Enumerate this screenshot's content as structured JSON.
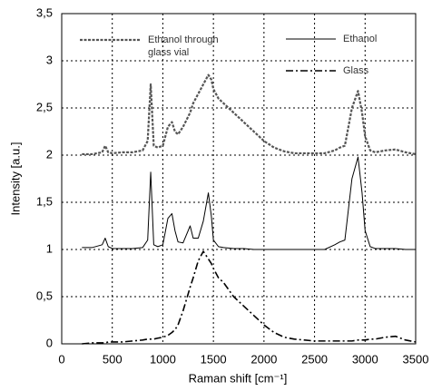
{
  "chart_data": {
    "type": "line",
    "x_label": "Raman shift [cm⁻¹]",
    "y_label": "Intensity [a.u.]",
    "xlim": [
      0,
      3500
    ],
    "xticks": [
      0,
      500,
      1000,
      1500,
      2000,
      2500,
      3000,
      3500
    ],
    "ylim": [
      0,
      3.5
    ],
    "yticks": [
      0,
      {
        "value": 0.5,
        "label": "0,5"
      },
      1,
      {
        "value": 1.5,
        "label": "1,5"
      },
      2,
      {
        "value": 2.5,
        "label": "2,5"
      },
      3,
      {
        "value": 3.5,
        "label": "3,5"
      }
    ],
    "grid": true,
    "x": [
      200,
      300,
      400,
      430,
      460,
      500,
      600,
      700,
      800,
      850,
      880,
      910,
      950,
      1000,
      1050,
      1090,
      1120,
      1150,
      1200,
      1270,
      1300,
      1350,
      1400,
      1450,
      1480,
      1500,
      1550,
      1600,
      1700,
      1800,
      1900,
      2000,
      2100,
      2200,
      2300,
      2400,
      2500,
      2600,
      2700,
      2750,
      2800,
      2870,
      2930,
      2970,
      3000,
      3050,
      3100,
      3200,
      3300,
      3400,
      3500
    ],
    "series": [
      {
        "name": "Ethanol through glass vial",
        "color": "#555555",
        "line_style": "dotted",
        "values": [
          2.01,
          2.01,
          2.03,
          2.1,
          2.03,
          2.02,
          2.03,
          2.03,
          2.05,
          2.15,
          2.75,
          2.1,
          2.08,
          2.1,
          2.3,
          2.35,
          2.25,
          2.22,
          2.3,
          2.45,
          2.55,
          2.65,
          2.75,
          2.85,
          2.8,
          2.7,
          2.6,
          2.55,
          2.45,
          2.35,
          2.25,
          2.15,
          2.08,
          2.04,
          2.02,
          2.02,
          2.02,
          2.02,
          2.05,
          2.08,
          2.1,
          2.5,
          2.68,
          2.45,
          2.2,
          2.05,
          2.03,
          2.05,
          2.06,
          2.03,
          2.01
        ]
      },
      {
        "name": "Ethanol",
        "color": "#000000",
        "line_style": "solid",
        "values": [
          1.02,
          1.02,
          1.05,
          1.12,
          1.03,
          1.01,
          1.01,
          1.01,
          1.02,
          1.1,
          1.82,
          1.05,
          1.03,
          1.05,
          1.33,
          1.38,
          1.2,
          1.08,
          1.07,
          1.25,
          1.12,
          1.12,
          1.3,
          1.6,
          1.35,
          1.1,
          1.03,
          1.02,
          1.01,
          1.01,
          1.0,
          1.0,
          1.0,
          1.0,
          1.0,
          1.0,
          1.0,
          1.0,
          1.05,
          1.08,
          1.1,
          1.75,
          1.98,
          1.6,
          1.2,
          1.03,
          1.01,
          1.01,
          1.01,
          1.0,
          1.0
        ]
      },
      {
        "name": "Glass",
        "color": "#000000",
        "line_style": "dashdot",
        "values": [
          0,
          0.01,
          0.01,
          0.01,
          0.02,
          0.02,
          0.02,
          0.03,
          0.04,
          0.05,
          0.05,
          0.05,
          0.06,
          0.07,
          0.09,
          0.12,
          0.15,
          0.2,
          0.35,
          0.6,
          0.7,
          0.88,
          0.98,
          0.9,
          0.85,
          0.8,
          0.7,
          0.65,
          0.5,
          0.4,
          0.3,
          0.2,
          0.12,
          0.07,
          0.05,
          0.04,
          0.03,
          0.03,
          0.03,
          0.03,
          0.03,
          0.03,
          0.04,
          0.04,
          0.04,
          0.05,
          0.05,
          0.07,
          0.08,
          0.04,
          0.02
        ]
      }
    ]
  }
}
